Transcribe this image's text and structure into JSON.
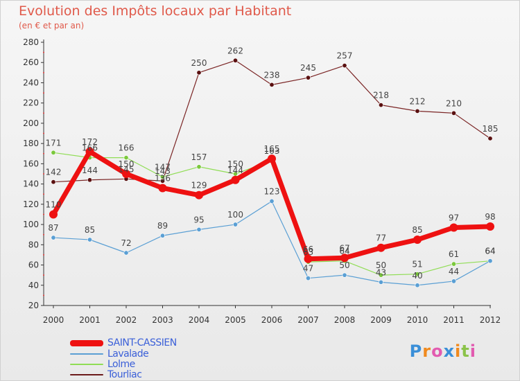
{
  "title": "Evolution des Impôts locaux par Habitant",
  "subtitle": "(en € et par an)",
  "logo": {
    "text": "Proxiti",
    "colors": [
      "#3a8fd8",
      "#f08a1e",
      "#e25bb0",
      "#3a8fd8",
      "#f08a1e",
      "#8bc34a",
      "#e25bb0"
    ]
  },
  "chart_data": {
    "type": "line",
    "title": "Evolution des Impôts locaux par Habitant",
    "subtitle": "(en € et par an)",
    "xlabel": "",
    "ylabel": "",
    "ylim": [
      20,
      280
    ],
    "yticks": [
      20,
      40,
      60,
      80,
      100,
      120,
      140,
      160,
      180,
      200,
      220,
      240,
      260,
      280
    ],
    "grid": false,
    "legend_position": "bottom-left",
    "x": [
      "2000",
      "2001",
      "2002",
      "2003",
      "2004",
      "2005",
      "2006",
      "2007",
      "2008",
      "2009",
      "2010",
      "2011",
      "2012"
    ],
    "series": [
      {
        "name": "SAINT-CASSIEN",
        "color": "#ee1111",
        "values": [
          110,
          172,
          150,
          136,
          129,
          144,
          165,
          66,
          67,
          77,
          85,
          97,
          98
        ],
        "labels": [
          "110",
          "172",
          "150",
          "136",
          "129",
          "144",
          "165",
          "66",
          "67",
          "77",
          "85",
          "97",
          "98"
        ]
      },
      {
        "name": "Lavalade",
        "color": "#5a9fd4",
        "values": [
          87,
          85,
          72,
          89,
          95,
          100,
          123,
          47,
          50,
          43,
          40,
          44,
          64
        ],
        "labels": [
          "87",
          "85",
          "72",
          "89",
          "95",
          "100",
          "123",
          "47",
          "50",
          "43",
          "40",
          "44",
          "64"
        ]
      },
      {
        "name": "Lolme",
        "color": "#90dd55",
        "values": [
          171,
          166,
          166,
          147,
          157,
          150,
          163,
          63,
          64,
          50,
          51,
          61,
          64
        ],
        "labels": [
          "171",
          "166",
          "166",
          "147",
          "157",
          "150",
          "163",
          "63",
          "64",
          "50",
          "51",
          "61",
          "64"
        ]
      },
      {
        "name": "Tourliac",
        "color": "#6b1a1a",
        "values": [
          142,
          144,
          145,
          143,
          250,
          262,
          238,
          245,
          257,
          218,
          212,
          210,
          185
        ],
        "labels": [
          "142",
          "144",
          "145",
          "143",
          "250",
          "262",
          "238",
          "245",
          "257",
          "218",
          "212",
          "210",
          "185"
        ]
      }
    ]
  }
}
